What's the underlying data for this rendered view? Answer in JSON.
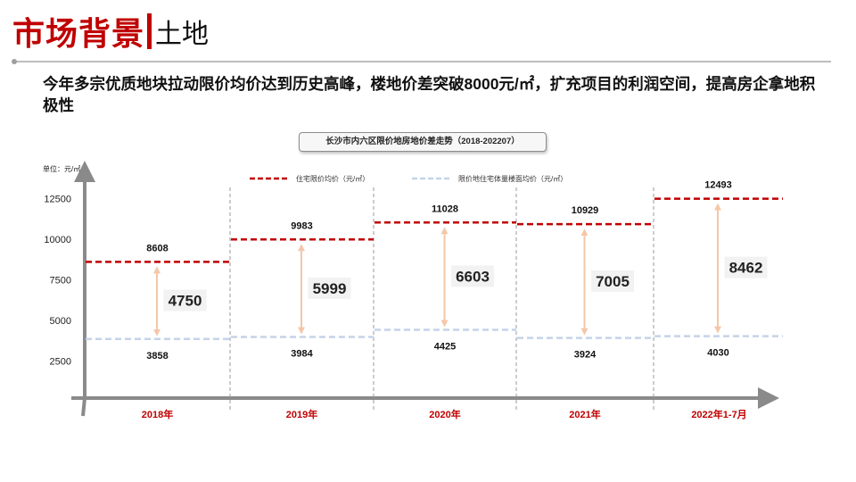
{
  "header": {
    "title_main": "市场背景",
    "title_sub": "土地",
    "headline": "今年多宗优质地块拉动限价均价达到历史高峰，楼地价差突破8000元/㎡，扩充项目的利润空间，提高房企拿地积极性"
  },
  "chart_data": {
    "type": "line",
    "title": "长沙市内六区限价地房地价差走势（2018-202207）",
    "unit_label": "单位：元/㎡",
    "categories": [
      "2018年",
      "2019年",
      "2020年",
      "2021年",
      "2022年1-7月"
    ],
    "yticks": [
      2500,
      5000,
      7500,
      10000,
      12500
    ],
    "ylim": [
      0,
      14000
    ],
    "grid": false,
    "legend_position": "top",
    "series": [
      {
        "name": "住宅限价均价（元/㎡）",
        "values": [
          8608,
          9983,
          11028,
          10929,
          12493
        ],
        "color": "#c00000",
        "dash": "dashed"
      },
      {
        "name": "限价地住宅体量楼面均价（元/㎡）",
        "values": [
          3858,
          3984,
          4425,
          3924,
          4030
        ],
        "color": "#c5d3e8",
        "dash": "dashed"
      }
    ],
    "differences": [
      4750,
      5999,
      6603,
      7005,
      8462
    ],
    "arrow_color": "#f4c7a8",
    "diff_box_color": "#f2f2f2"
  }
}
